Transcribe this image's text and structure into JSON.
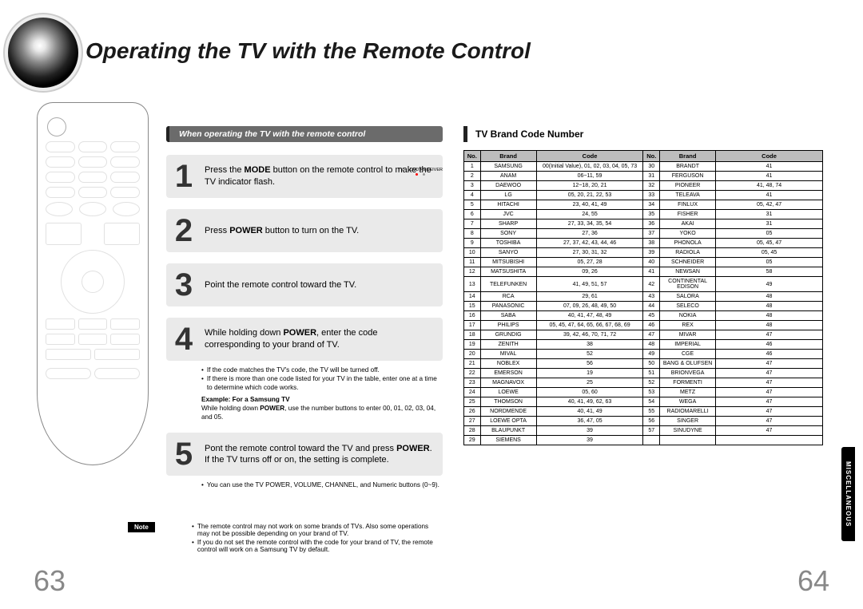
{
  "title": "Operating the TV with the Remote Control",
  "left_section_header": "When operating the TV with the remote control",
  "indicator": {
    "label_left": "TV",
    "label_right": "DVD RECEIVER"
  },
  "steps": [
    {
      "n": "1",
      "html": "Press the <b>MODE</b> button on the remote control  to make the TV indicator flash."
    },
    {
      "n": "2",
      "html": "Press <b>POWER</b> button to turn on the TV."
    },
    {
      "n": "3",
      "html": "Point the remote control toward the TV."
    },
    {
      "n": "4",
      "html": "While holding down <b>POWER</b>, enter the code corresponding to your brand of TV."
    },
    {
      "n": "5",
      "html": "Pont the remote control toward the TV and press <b>POWER</b>. If the TV turns off or on, the setting is complete."
    }
  ],
  "step4_notes": [
    "If the code matches the TV's code, the TV will be turned off.",
    "If there is more than one code listed for your TV in the table, enter one at a time to determine which code works."
  ],
  "step4_example_label": "Example: For a Samsung TV",
  "step4_example_text": "While holding down <b>POWER</b>, use the number buttons to enter 00, 01, 02, 03, 04, and 05.",
  "step5_note": "You can use the TV POWER, VOLUME, CHANNEL, and Numeric buttons (0~9).",
  "note_label": "Note",
  "notes": [
    "The remote control may not work on some brands of TVs. Also some operations may not be possible depending on your brand of TV.",
    "If you do not set the remote control with the code for your brand of TV, the remote control will work on a Samsung TV by default."
  ],
  "table_title": "TV Brand Code Number",
  "table_headers": [
    "No.",
    "Brand",
    "Code",
    "No.",
    "Brand",
    "Code"
  ],
  "rows": [
    [
      "1",
      "SAMSUNG",
      "00(Initial Value), 01, 02, 03, 04, 05, 73",
      "30",
      "BRANDT",
      "41"
    ],
    [
      "2",
      "ANAM",
      "06~11, 59",
      "31",
      "FERGUSON",
      "41"
    ],
    [
      "3",
      "DAEWOO",
      "12~18, 20, 21",
      "32",
      "PIONEER",
      "41, 48, 74"
    ],
    [
      "4",
      "LG",
      "05, 20, 21, 22, 53",
      "33",
      "TELEAVA",
      "41"
    ],
    [
      "5",
      "HITACHI",
      "23, 40, 41, 49",
      "34",
      "FINLUX",
      "05, 42, 47"
    ],
    [
      "6",
      "JVC",
      "24, 55",
      "35",
      "FISHER",
      "31"
    ],
    [
      "7",
      "SHARP",
      "27, 33, 34, 35, 54",
      "36",
      "AKAI",
      "31"
    ],
    [
      "8",
      "SONY",
      "27, 36",
      "37",
      "YOKO",
      "05"
    ],
    [
      "9",
      "TOSHIBA",
      "27, 37, 42, 43, 44, 46",
      "38",
      "PHONOLA",
      "05, 45, 47"
    ],
    [
      "10",
      "SANYO",
      "27, 30, 31, 32",
      "39",
      "RADIOLA",
      "05, 45"
    ],
    [
      "11",
      "MITSUBISHI",
      "05, 27, 28",
      "40",
      "SCHNEIDER",
      "05"
    ],
    [
      "12",
      "MATSUSHITA",
      "09, 26",
      "41",
      "NEWSAN",
      "58"
    ],
    [
      "13",
      "TELEFUNKEN",
      "41, 49, 51, 57",
      "42",
      "CONTINENTAL EDISON",
      "49"
    ],
    [
      "14",
      "RCA",
      "29, 61",
      "43",
      "SALORA",
      "48"
    ],
    [
      "15",
      "PANASONIC",
      "07, 09, 26, 48, 49, 50",
      "44",
      "SELECO",
      "48"
    ],
    [
      "16",
      "SABA",
      "40, 41, 47, 48, 49",
      "45",
      "NOKIA",
      "48"
    ],
    [
      "17",
      "PHILIPS",
      "05, 45, 47, 64, 65, 66, 67, 68, 69",
      "46",
      "REX",
      "48"
    ],
    [
      "18",
      "GRUNDIG",
      "39, 42, 46, 70, 71, 72",
      "47",
      "MIVAR",
      "47"
    ],
    [
      "19",
      "ZENITH",
      "38",
      "48",
      "IMPERIAL",
      "46"
    ],
    [
      "20",
      "MIVAL",
      "52",
      "49",
      "CGE",
      "46"
    ],
    [
      "21",
      "NOBLEX",
      "56",
      "50",
      "BANG & OLUFSEN",
      "47"
    ],
    [
      "22",
      "EMERSON",
      "19",
      "51",
      "BRIONVEGA",
      "47"
    ],
    [
      "23",
      "MAGNAVOX",
      "25",
      "52",
      "FORMENTI",
      "47"
    ],
    [
      "24",
      "LOEWE",
      "05, 60",
      "53",
      "METZ",
      "47"
    ],
    [
      "25",
      "THOMSON",
      "40, 41, 49, 62, 63",
      "54",
      "WEGA",
      "47"
    ],
    [
      "26",
      "NORDMENDE",
      "40, 41, 49",
      "55",
      "RADIOMARELLI",
      "47"
    ],
    [
      "27",
      "LOEWE OPTA",
      "36, 47, 05",
      "56",
      "SINGER",
      "47"
    ],
    [
      "28",
      "BLAUPUNKT",
      "39",
      "57",
      "SINUDYNE",
      "47"
    ],
    [
      "29",
      "SIEMENS",
      "39",
      "",
      "",
      ""
    ]
  ],
  "page_left": "63",
  "page_right": "64",
  "side_tab": "MISCELLANEOUS",
  "colors": {
    "section_bar_bg": "#6b6b6b",
    "step_bg": "#eaeaea",
    "table_header_bg": "#bdbdbd",
    "pagenum_color": "#888888"
  }
}
